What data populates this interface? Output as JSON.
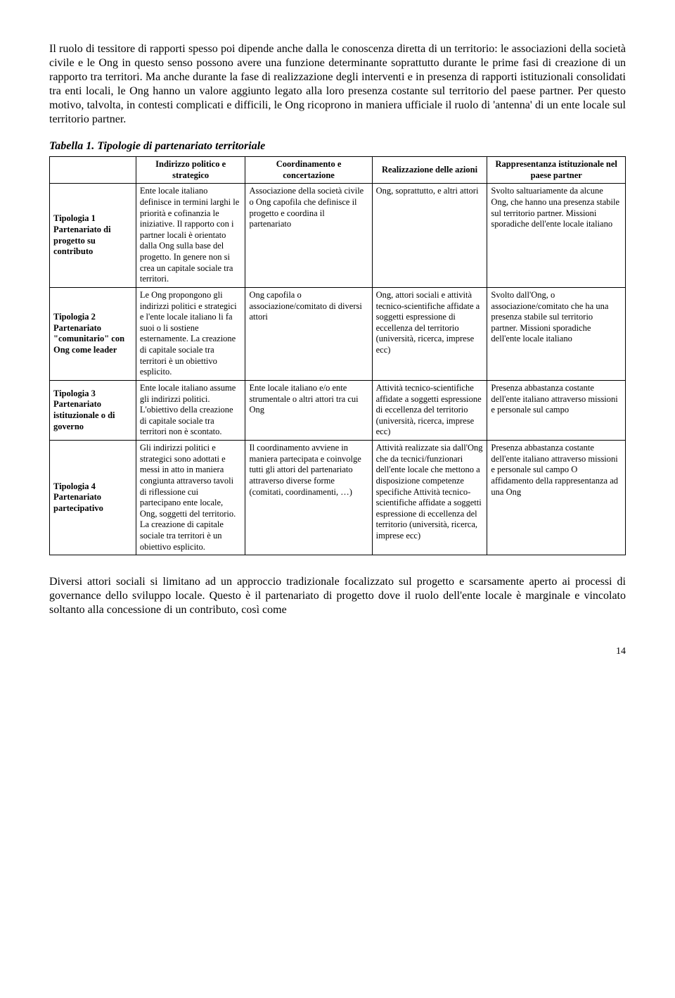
{
  "intro": "Il ruolo di tessitore di rapporti spesso poi dipende anche dalla le conoscenza diretta di un territorio: le associazioni della società civile e le Ong in questo senso possono avere una funzione determinante soprattutto durante le prime fasi di creazione di un rapporto tra territori. Ma anche durante la fase di realizzazione degli interventi e in presenza di rapporti istituzionali consolidati tra enti locali, le Ong hanno un valore aggiunto legato alla loro presenza costante sul territorio del paese partner. Per questo motivo, talvolta, in contesti complicati e difficili, le Ong ricoprono in maniera ufficiale il ruolo di 'antenna' di un ente locale sul territorio partner.",
  "table_title": "Tabella 1. Tipologie di partenariato territoriale",
  "headers": {
    "h1": "Indirizzo politico e strategico",
    "h2": "Coordinamento e concertazione",
    "h3": "Realizzazione delle azioni",
    "h4": "Rappresentanza istituzionale nel paese partner"
  },
  "rows": {
    "r1": {
      "label": "Tipologia 1 Partenariato di progetto su contributo",
      "c1": "Ente locale italiano definisce in termini larghi le priorità e cofinanzia le iniziative. Il rapporto con i partner locali è orientato dalla Ong sulla base del progetto. In genere non si crea un capitale sociale tra territori.",
      "c2": "Associazione della società civile o Ong capofila che definisce il progetto e coordina il partenariato",
      "c3": "Ong, soprattutto, e altri attori",
      "c4": "Svolto saltuariamente da alcune Ong, che hanno una presenza stabile sul territorio partner. Missioni sporadiche dell'ente locale italiano"
    },
    "r2": {
      "label": "Tipologia 2 Partenariato \"comunitario\" con Ong come leader",
      "c1": "Le Ong propongono gli indirizzi politici e strategici e l'ente locale italiano li fa suoi o li sostiene esternamente. La creazione di capitale sociale tra territori è un obiettivo esplicito.",
      "c2": "Ong capofila o associazione/comitato di diversi attori",
      "c3": "Ong, attori sociali e attività tecnico-scientifiche affidate a soggetti espressione di eccellenza del territorio (università, ricerca, imprese ecc)",
      "c4": "Svolto dall'Ong, o associazione/comitato che ha una presenza stabile sul territorio partner. Missioni sporadiche dell'ente locale italiano"
    },
    "r3": {
      "label": "Tipologia 3 Partenariato istituzionale o di governo",
      "c1": "Ente locale italiano assume gli indirizzi politici. L'obiettivo della creazione di capitale sociale tra territori non è scontato.",
      "c2": "Ente locale italiano e/o ente strumentale o altri attori tra cui Ong",
      "c3": "Attività tecnico-scientifiche affidate a soggetti espressione di eccellenza del territorio (università, ricerca, imprese ecc)",
      "c4": "Presenza abbastanza costante dell'ente italiano attraverso missioni e personale sul campo"
    },
    "r4": {
      "label": "Tipologia 4 Partenariato partecipativo",
      "c1": "Gli indirizzi politici e strategici sono adottati e messi in atto in maniera congiunta attraverso tavoli di riflessione cui partecipano ente locale, Ong, soggetti del territorio. La creazione di capitale sociale tra territori è un obiettivo esplicito.",
      "c2": "Il coordinamento avviene in maniera partecipata e coinvolge tutti gli attori del partenariato attraverso diverse forme (comitati, coordinamenti, …)",
      "c3": "Attività realizzate sia dall'Ong che da tecnici/funzionari dell'ente locale che mettono a disposizione competenze specifiche Attività tecnico-scientifiche affidate a soggetti espressione di eccellenza del territorio (università, ricerca, imprese ecc)",
      "c4": "Presenza abbastanza costante dell'ente italiano attraverso missioni e personale sul campo O affidamento della rappresentanza ad una Ong"
    }
  },
  "outro": "Diversi attori sociali si limitano ad un approccio tradizionale focalizzato sul progetto e scarsamente aperto ai processi di governance dello sviluppo locale. Questo è il partenariato di progetto dove il ruolo dell'ente locale è marginale e vincolato soltanto alla concessione di un contributo, così come",
  "pagenum": "14"
}
